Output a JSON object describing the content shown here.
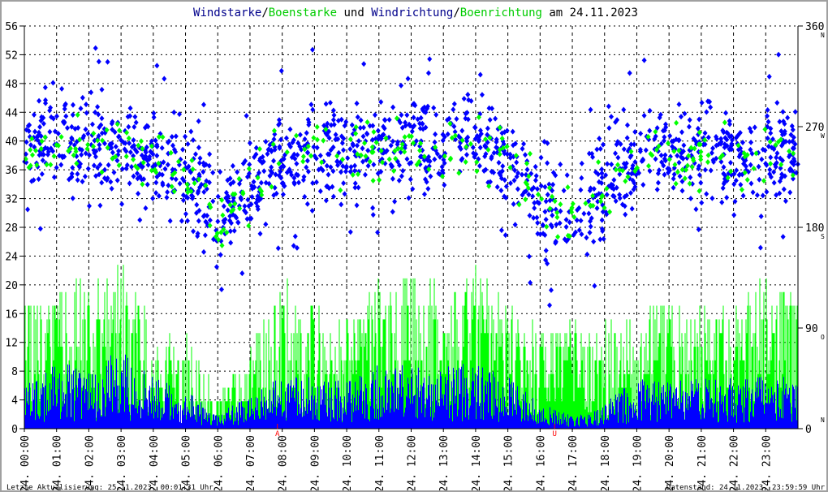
{
  "chart_data": {
    "type": "scatter",
    "title_parts": [
      {
        "text": "Windstarke",
        "color": "#00008b"
      },
      {
        "text": "/",
        "color": "#000000"
      },
      {
        "text": "Boenstarke",
        "color": "#00cc00"
      },
      {
        "text": " und ",
        "color": "#000000"
      },
      {
        "text": "Windrichtung",
        "color": "#00008b"
      },
      {
        "text": "/",
        "color": "#000000"
      },
      {
        "text": "Boenrichtung",
        "color": "#00cc00"
      },
      {
        "text": " am 24.11.2023",
        "color": "#000000"
      }
    ],
    "left_axis": {
      "ylim": [
        0,
        56
      ],
      "ticks": [
        "0",
        "4",
        "8",
        "12",
        "16",
        "20",
        "24",
        "28",
        "32",
        "36",
        "40",
        "44",
        "48",
        "52",
        "56"
      ]
    },
    "right_axis": {
      "ylim": [
        0,
        360
      ],
      "ticks": [
        "0",
        "90",
        "180",
        "270",
        "360"
      ],
      "compass": [
        "N",
        "O",
        "S",
        "W",
        "N"
      ]
    },
    "x_ticks": [
      "24. 00:00",
      "24. 01:00",
      "24. 02:00",
      "24. 03:00",
      "24. 04:00",
      "24. 05:00",
      "24. 06:00",
      "24. 07:00",
      "24. 08:00",
      "24. 09:00",
      "24. 10:00",
      "24. 11:00",
      "24. 12:00",
      "24. 13:00",
      "24. 14:00",
      "24. 15:00",
      "24. 16:00",
      "24. 17:00",
      "24. 18:00",
      "24. 19:00",
      "24. 20:00",
      "24. 21:00",
      "24. 22:00",
      "24. 23:00"
    ],
    "markers": [
      {
        "label": "A",
        "hour": 7.85
      },
      {
        "label": "U",
        "hour": 16.45
      }
    ],
    "series": [
      {
        "name": "Windstarke",
        "color": "#0000ff",
        "hourly_mean": [
          4,
          5,
          5,
          6,
          4,
          3,
          1,
          3,
          4,
          4,
          4,
          5,
          5,
          5,
          5,
          4,
          2,
          1,
          2,
          4,
          4,
          4,
          4,
          4
        ]
      },
      {
        "name": "Boenstarke",
        "color": "#00ff00",
        "hourly_mean": [
          12,
          13,
          14,
          16,
          10,
          9,
          3,
          8,
          14,
          12,
          11,
          14,
          15,
          14,
          15,
          12,
          10,
          10,
          10,
          11,
          12,
          11,
          12,
          14
        ]
      },
      {
        "name": "Windrichtung",
        "color": "#0000ff",
        "hourly_mean_deg": [
          245,
          260,
          255,
          250,
          240,
          235,
          185,
          215,
          240,
          250,
          245,
          255,
          255,
          250,
          255,
          240,
          205,
          185,
          215,
          245,
          245,
          245,
          240,
          245
        ]
      },
      {
        "name": "Boenrichtung",
        "color": "#00ff00",
        "hourly_mean_deg": [
          240,
          255,
          250,
          250,
          238,
          232,
          185,
          212,
          240,
          248,
          243,
          250,
          252,
          248,
          252,
          240,
          205,
          185,
          215,
          243,
          243,
          243,
          240,
          243
        ]
      }
    ]
  },
  "footer": {
    "left": "Letzte Aktualisierung: 25.11.2023, 00:01:31 Uhr",
    "right": "Datenstand: 24.11.2023, 23:59:59 Uhr"
  }
}
